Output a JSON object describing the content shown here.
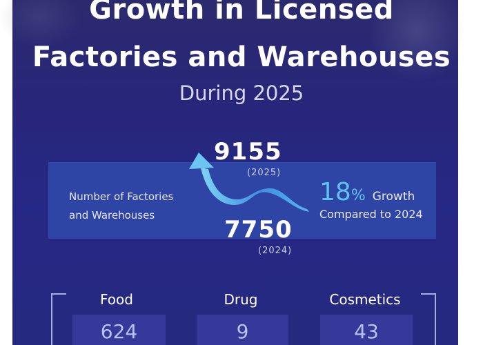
{
  "title_line1": "Growth in Licensed",
  "title_line2": "Factories and Warehouses",
  "subtitle": "During 2025",
  "metric_label_line1": "Number of Factories",
  "metric_label_line2": "and Warehouses",
  "current": {
    "value": "9155",
    "year": "(2025)"
  },
  "previous": {
    "value": "7750",
    "year": "(2024)"
  },
  "growth": {
    "percent": "18",
    "percent_sign": "%",
    "word": "Growth",
    "comparison": "Compared to 2024"
  },
  "categories": [
    {
      "label": "Food",
      "value": "624"
    },
    {
      "label": "Drug",
      "value": "9"
    },
    {
      "label": "Cosmetics",
      "value": "43"
    }
  ],
  "colors": {
    "background": "#27267a",
    "band": "#2f45a6",
    "accent": "#5cc3ee",
    "box": "#36399a"
  },
  "icons": {
    "trend": "curved-up-arrow-icon"
  }
}
